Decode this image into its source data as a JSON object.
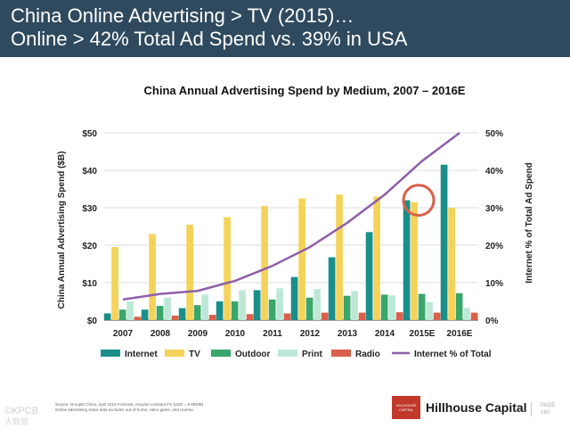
{
  "header": {
    "line1": "China Online Advertising > TV (2015)…",
    "line2": "Online > 42% Total Ad Spend vs. 39% in USA"
  },
  "chart_data": {
    "type": "bar",
    "title": "China Annual Advertising Spend by Medium, 2007 – 2016E",
    "categories": [
      "2007",
      "2008",
      "2009",
      "2010",
      "2011",
      "2012",
      "2013",
      "2014",
      "2015E",
      "2016E"
    ],
    "ylabel": "China Annual Advertising Spend ($B)",
    "y2label": "Internet % of Total Ad Spend",
    "ylim": [
      0,
      50
    ],
    "y2lim": [
      0,
      50
    ],
    "yticks": [
      "$0",
      "$10",
      "$20",
      "$30",
      "$40",
      "$50"
    ],
    "y2ticks": [
      "0%",
      "10%",
      "20%",
      "30%",
      "40%",
      "50%"
    ],
    "gridlines": true,
    "legend_position": "bottom",
    "series": [
      {
        "name": "Internet",
        "color": "#1a8f8a",
        "values": [
          1.8,
          2.8,
          3.2,
          5.0,
          8.0,
          11.5,
          16.8,
          23.5,
          32.0,
          41.5
        ]
      },
      {
        "name": "TV",
        "color": "#f5d35a",
        "values": [
          19.5,
          23.0,
          25.5,
          27.5,
          30.5,
          32.5,
          33.5,
          33.0,
          31.5,
          30.0
        ]
      },
      {
        "name": "Outdoor",
        "color": "#3aa66a",
        "values": [
          2.8,
          3.8,
          4.0,
          5.0,
          5.5,
          6.0,
          6.5,
          6.8,
          7.0,
          7.2
        ]
      },
      {
        "name": "Print",
        "color": "#bde8d8",
        "values": [
          5.0,
          6.0,
          6.8,
          8.0,
          8.5,
          8.3,
          7.8,
          6.6,
          4.8,
          3.2
        ]
      },
      {
        "name": "Radio",
        "color": "#d9604a",
        "values": [
          0.9,
          1.2,
          1.4,
          1.6,
          1.8,
          2.0,
          2.0,
          2.1,
          2.0,
          2.0
        ]
      }
    ],
    "line_series": {
      "name": "Internet % of Total",
      "color": "#8e5fa8",
      "axis": "right",
      "values": [
        5.5,
        7.0,
        7.8,
        10.5,
        14.5,
        19.5,
        26.0,
        33.5,
        42.5,
        50.0
      ]
    },
    "annotation": {
      "type": "circle",
      "category": "2015E",
      "color": "#d9604a"
    }
  },
  "footer": {
    "source_line1": "Source: GroupM China, April 2016 Forecast. Assume constant FX (USD = 6.5RMB)",
    "source_line2": "Online advertising share data excludes out-of-home, video game, and cinema.",
    "watermark": "©KPCB",
    "watermark_sub": "大数据",
    "logo_text": "HILLHOUSE CAPITAL",
    "brand": "Hillhouse Capital",
    "page_label": "PAGE",
    "page_number": "160"
  }
}
